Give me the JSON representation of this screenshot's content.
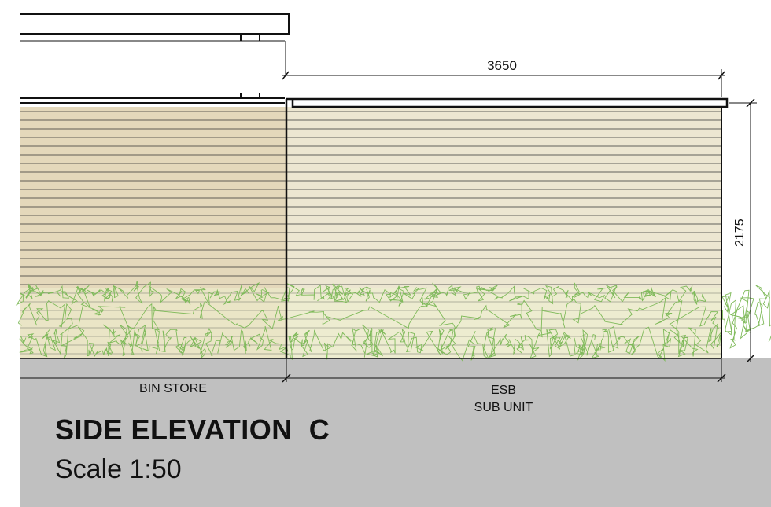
{
  "dimensions": {
    "width_label": "3650",
    "height_label": "2175"
  },
  "zones": {
    "left_label": "BIN STORE",
    "right_label_line1": "ESB",
    "right_label_line2": "SUB UNIT"
  },
  "title": {
    "heading": "SIDE ELEVATION  C",
    "scale": "Scale 1:50"
  },
  "colors": {
    "ground": "#c0c0c0",
    "cladding_left": "#e4d8bb",
    "cladding_right": "#ece6d1",
    "hedge": "#7fba5a",
    "line": "#111111"
  }
}
